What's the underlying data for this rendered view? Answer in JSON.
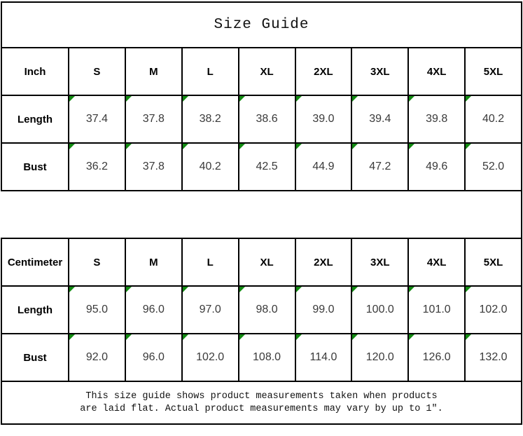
{
  "title": "Size Guide",
  "sizes": [
    "S",
    "M",
    "L",
    "XL",
    "2XL",
    "3XL",
    "4XL",
    "5XL"
  ],
  "tables": [
    {
      "unit_label": "Inch",
      "rows": [
        {
          "label": "Length",
          "values": [
            "37.4",
            "37.8",
            "38.2",
            "38.6",
            "39.0",
            "39.4",
            "39.8",
            "40.2"
          ]
        },
        {
          "label": "Bust",
          "values": [
            "36.2",
            "37.8",
            "40.2",
            "42.5",
            "44.9",
            "47.2",
            "49.6",
            "52.0"
          ]
        }
      ]
    },
    {
      "unit_label": "Centimeter",
      "rows": [
        {
          "label": "Length",
          "values": [
            "95.0",
            "96.0",
            "97.0",
            "98.0",
            "99.0",
            "100.0",
            "101.0",
            "102.0"
          ]
        },
        {
          "label": "Bust",
          "values": [
            "92.0",
            "96.0",
            "102.0",
            "108.0",
            "114.0",
            "120.0",
            "126.0",
            "132.0"
          ]
        }
      ]
    }
  ],
  "footer": {
    "line1": "This size guide shows product measurements taken when products",
    "line2": "are laid flat. Actual product measurements may vary by up to 1″."
  },
  "colors": {
    "border": "#000000",
    "corner_marker_green": "#128a12",
    "background": "#ffffff",
    "value_text": "#3a3a3a"
  },
  "icons": {
    "corner_marker": "green top-left triangle marker on measurement cells"
  }
}
